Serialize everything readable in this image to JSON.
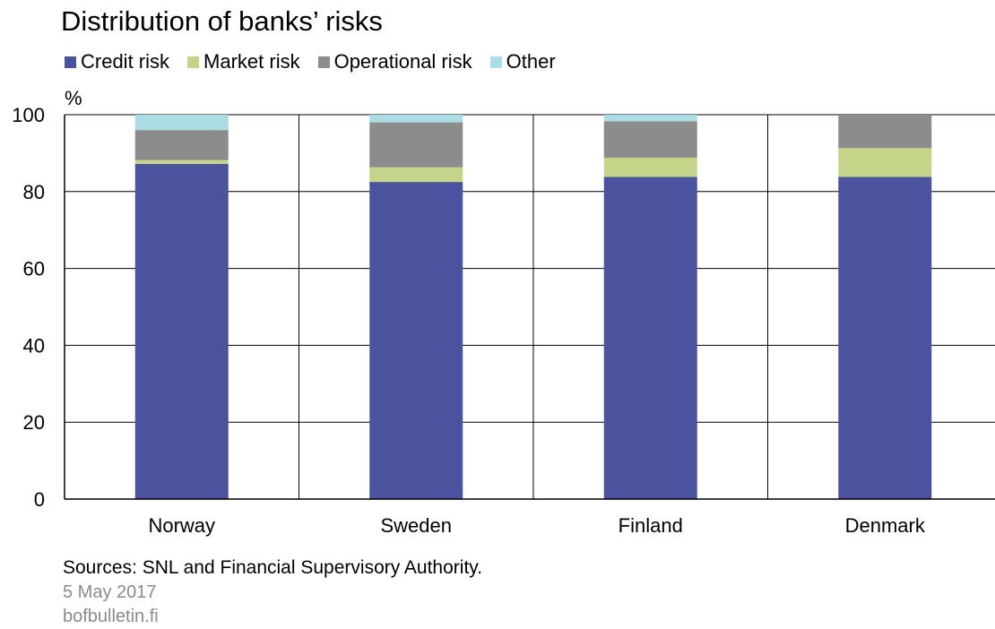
{
  "chart_data": {
    "type": "bar",
    "stacked": true,
    "title": "Distribution of banks’ risks",
    "ylabel": "%",
    "ylim": [
      0,
      100
    ],
    "yticks": [
      0,
      20,
      40,
      60,
      80,
      100
    ],
    "categories": [
      "Norway",
      "Sweden",
      "Finland",
      "Denmark"
    ],
    "series": [
      {
        "name": "Credit risk",
        "color": "#4b529e",
        "values": [
          87.2,
          82.5,
          83.8,
          83.8
        ]
      },
      {
        "name": "Market risk",
        "color": "#c4d58a",
        "values": [
          1.0,
          3.8,
          5.0,
          7.5
        ]
      },
      {
        "name": "Operational risk",
        "color": "#8c8c8c",
        "values": [
          7.8,
          11.7,
          9.5,
          8.7
        ]
      },
      {
        "name": "Other",
        "color": "#a9dde3",
        "values": [
          4.0,
          2.0,
          1.7,
          0.0
        ]
      }
    ],
    "legend_position": "top-left",
    "grid": true
  },
  "footer": {
    "sources": "Sources: SNL and Financial Supervisory Authority.",
    "date": "5 May 2017",
    "site": "bofbulletin.fi"
  }
}
